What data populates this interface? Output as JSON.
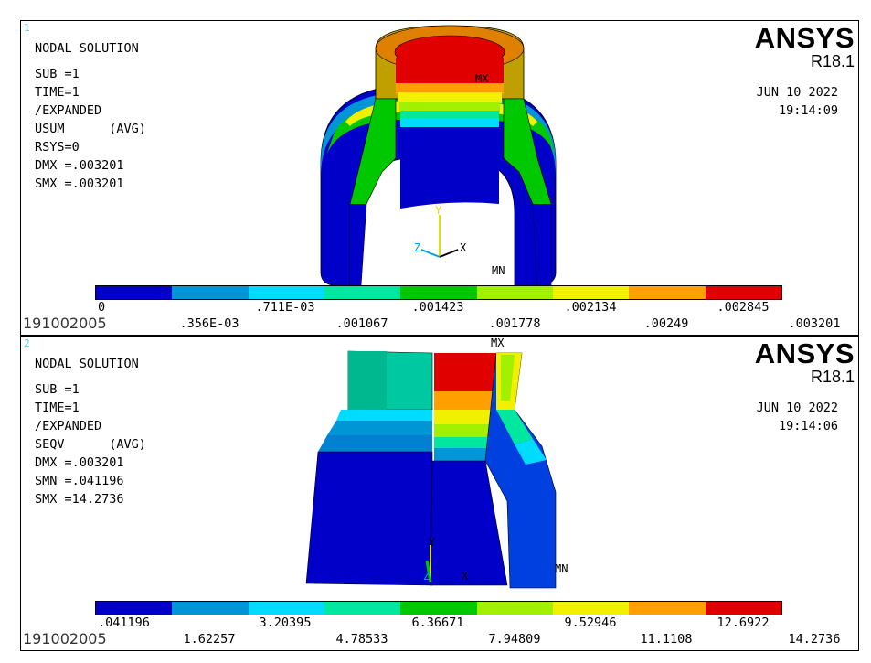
{
  "colors": [
    "#0000c8",
    "#0096d6",
    "#00dcff",
    "#00e8a0",
    "#00c800",
    "#a0f000",
    "#f0f000",
    "#ffa000",
    "#e00000"
  ],
  "window1": {
    "number": "1",
    "info": [
      "NODAL SOLUTION",
      "SUB =1",
      "TIME=1",
      "/EXPANDED",
      "USUM      (AVG)",
      "RSYS=0",
      "DMX =.003201",
      "SMX =.003201"
    ],
    "brand": "ANSYS",
    "version": "R18.1",
    "date": "JUN 10 2022",
    "time": "19:14:09",
    "top_labels": [
      "0",
      ".711E-03",
      ".001423",
      ".002134",
      ".002845"
    ],
    "bottom_labels": [
      ".356E-03",
      ".001067",
      ".001778",
      ".00249",
      ".003201"
    ],
    "job": "191002005",
    "mx": "MX",
    "mn": "MN",
    "triad": {
      "y": "Y",
      "z": "Z",
      "x": "X"
    }
  },
  "window2": {
    "number": "2",
    "info": [
      "NODAL SOLUTION",
      "SUB =1",
      "TIME=1",
      "/EXPANDED",
      "SEQV      (AVG)",
      "DMX =.003201",
      "SMN =.041196",
      "SMX =14.2736"
    ],
    "brand": "ANSYS",
    "version": "R18.1",
    "date": "JUN 10 2022",
    "time": "19:14:06",
    "top_labels": [
      ".041196",
      "3.20395",
      "6.36671",
      "9.52946",
      "12.6922"
    ],
    "bottom_labels": [
      "1.62257",
      "4.78533",
      "7.94809",
      "11.1108",
      "14.2736"
    ],
    "job": "191002005",
    "mx": "MX",
    "mn": "MN",
    "triad": {
      "y": "Y",
      "z": "Z",
      "x": "X"
    }
  }
}
